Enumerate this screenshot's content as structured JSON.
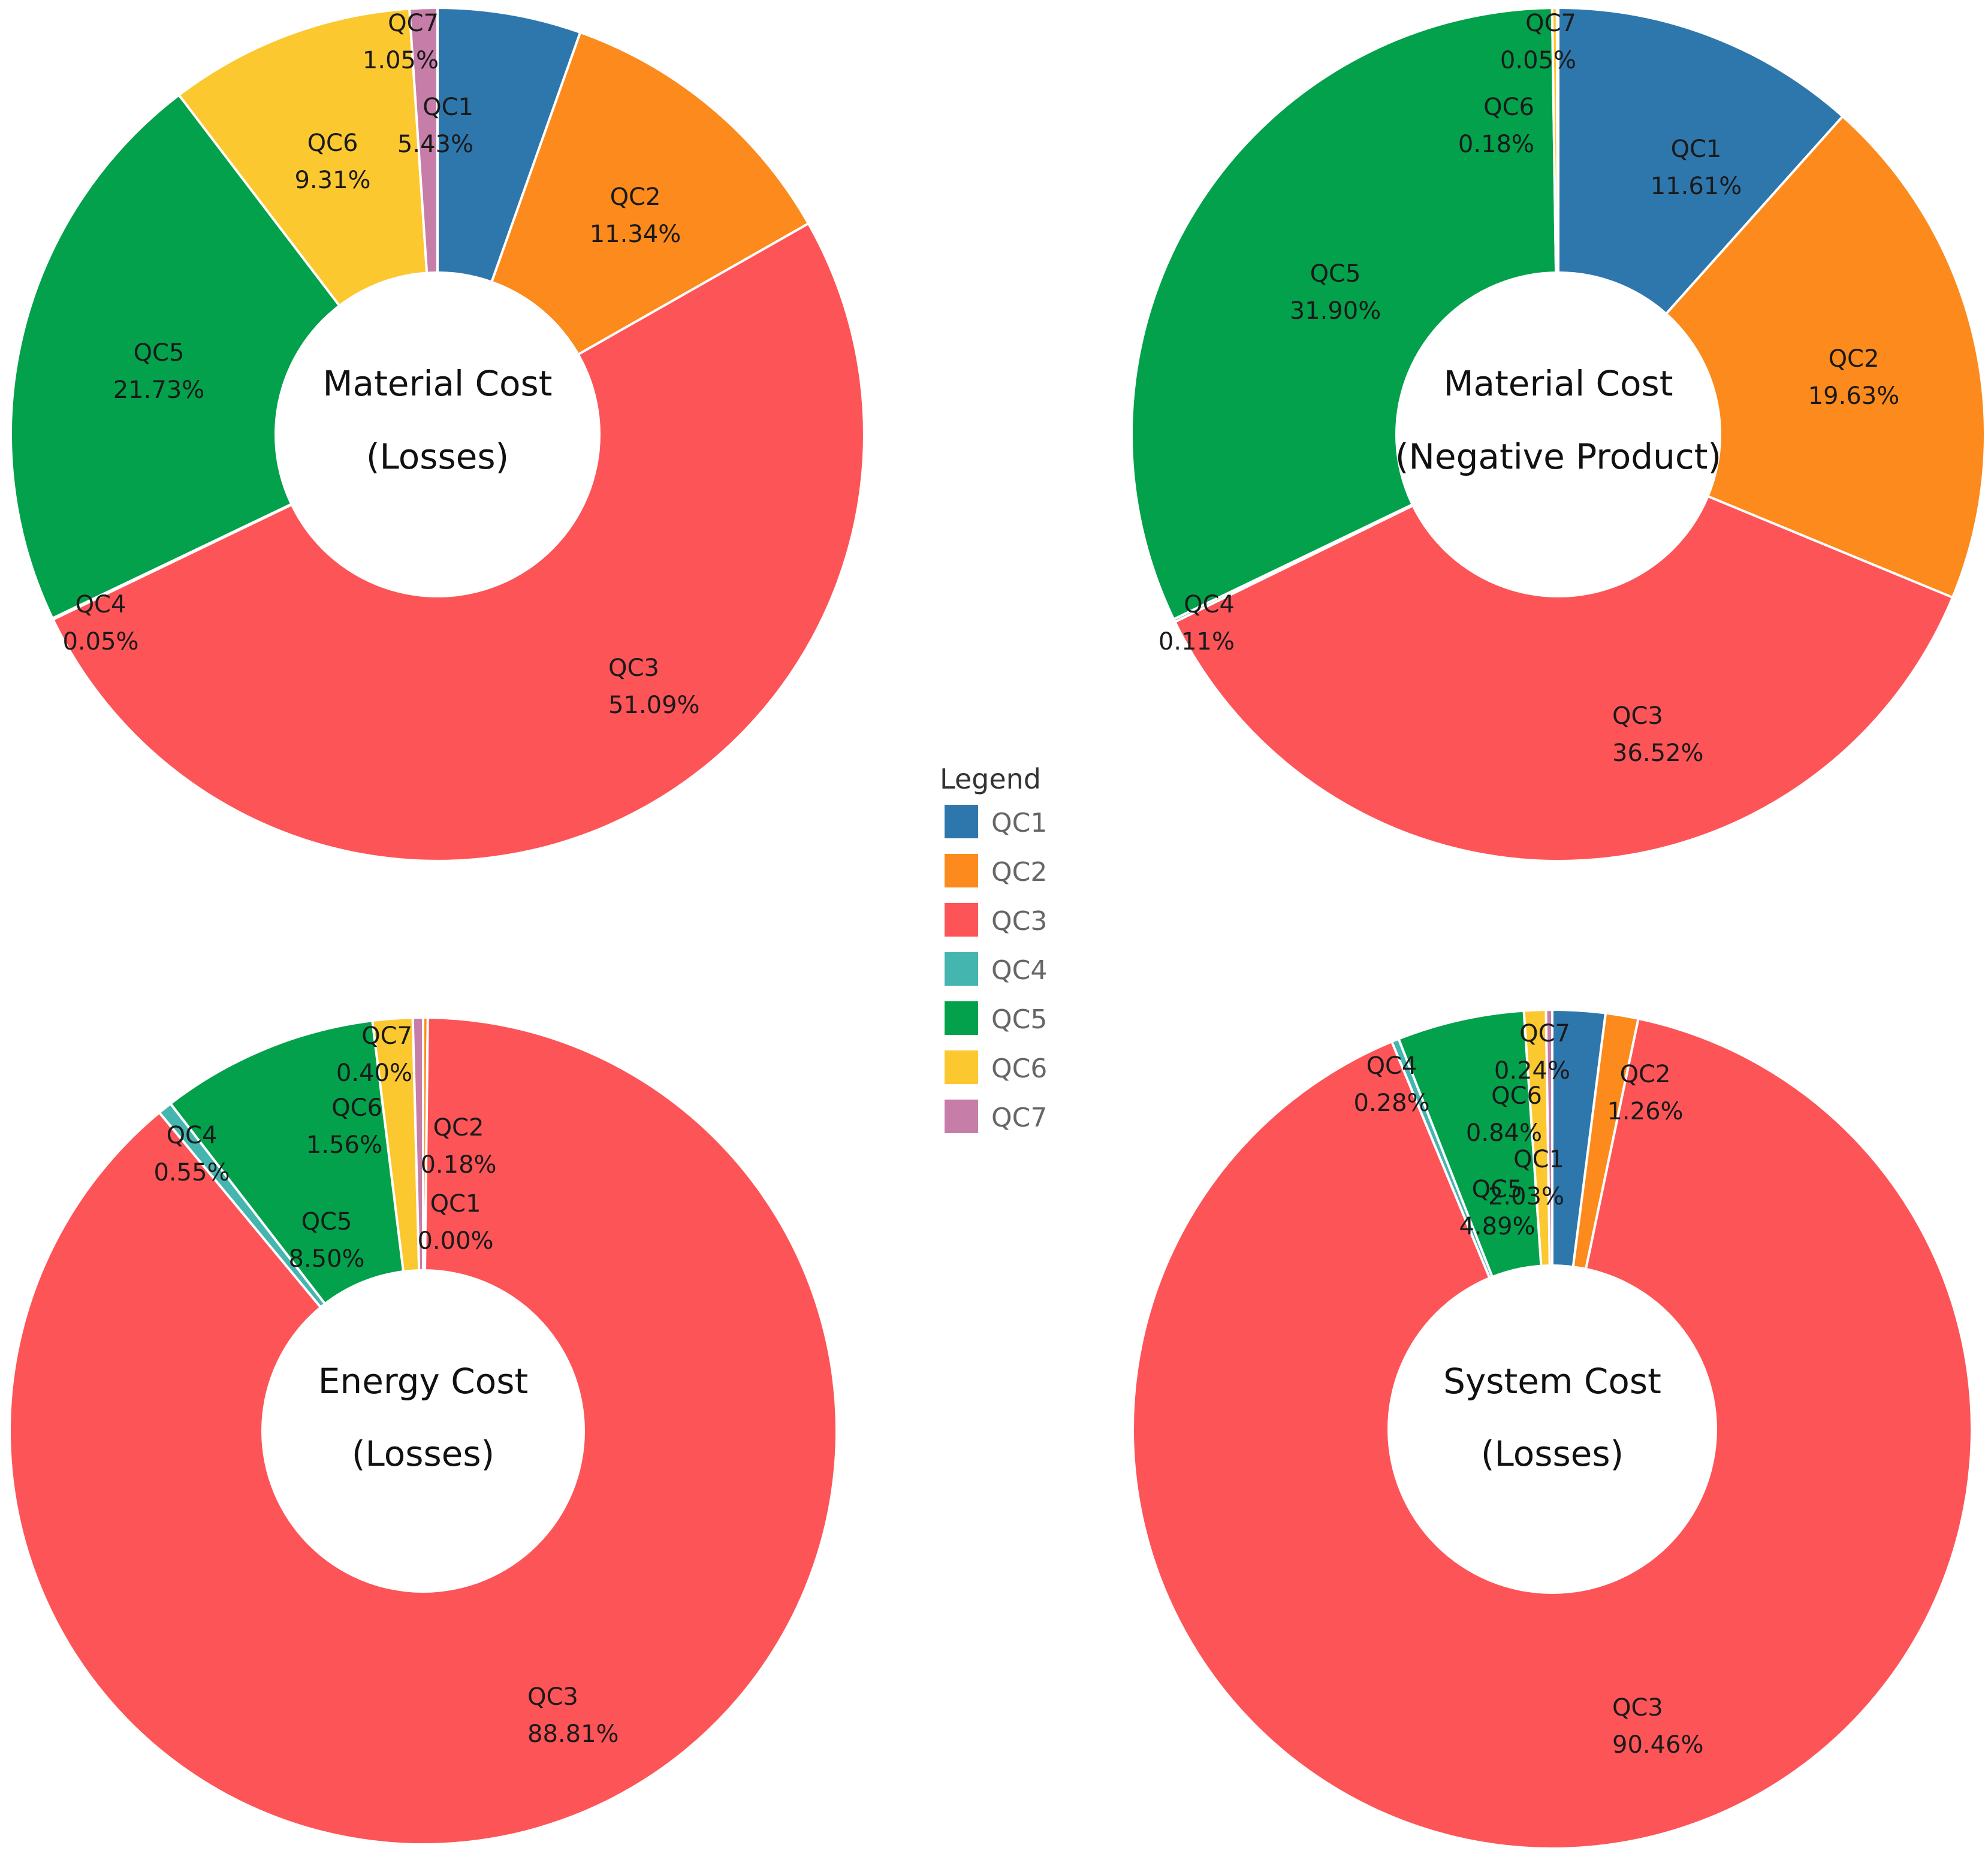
{
  "legend": {
    "title": "Legend",
    "items": [
      {
        "label": "QC1",
        "color": "#2E77AD"
      },
      {
        "label": "QC2",
        "color": "#FC8A1C"
      },
      {
        "label": "QC3",
        "color": "#FD5458"
      },
      {
        "label": "QC4",
        "color": "#45B5B0"
      },
      {
        "label": "QC5",
        "color": "#03A14B"
      },
      {
        "label": "QC6",
        "color": "#FBC830"
      },
      {
        "label": "QC7",
        "color": "#C67EA9"
      }
    ]
  },
  "chart_data": [
    {
      "type": "pie",
      "variant": "donut",
      "title_lines": [
        "Material Cost",
        "(Losses)"
      ],
      "categories": [
        "QC1",
        "QC2",
        "QC3",
        "QC4",
        "QC5",
        "QC6",
        "QC7"
      ],
      "values": [
        5.43,
        11.34,
        51.09,
        0.05,
        21.73,
        9.31,
        1.05
      ],
      "value_labels": [
        "5.43%",
        "11.34%",
        "51.09%",
        "0.05%",
        "21.73%",
        "9.31%",
        "1.05%"
      ]
    },
    {
      "type": "pie",
      "variant": "donut",
      "title_lines": [
        "Material Cost",
        "(Negative Product)"
      ],
      "categories": [
        "QC1",
        "QC2",
        "QC3",
        "QC4",
        "QC5",
        "QC6",
        "QC7"
      ],
      "values": [
        11.61,
        19.63,
        36.52,
        0.11,
        31.9,
        0.18,
        0.05
      ],
      "value_labels": [
        "11.61%",
        "19.63%",
        "36.52%",
        "0.11%",
        "31.90%",
        "0.18%",
        "0.05%"
      ]
    },
    {
      "type": "pie",
      "variant": "donut",
      "title_lines": [
        "Energy Cost",
        "(Losses)"
      ],
      "categories": [
        "QC1",
        "QC2",
        "QC3",
        "QC4",
        "QC5",
        "QC6",
        "QC7"
      ],
      "values": [
        0.0,
        0.18,
        88.81,
        0.55,
        8.5,
        1.56,
        0.4
      ],
      "value_labels": [
        "0.00%",
        "0.18%",
        "88.81%",
        "0.55%",
        "8.50%",
        "1.56%",
        "0.40%"
      ]
    },
    {
      "type": "pie",
      "variant": "donut",
      "title_lines": [
        "System Cost",
        "(Losses)"
      ],
      "categories": [
        "QC1",
        "QC2",
        "QC3",
        "QC4",
        "QC5",
        "QC6",
        "QC7"
      ],
      "values": [
        2.03,
        1.26,
        90.46,
        0.28,
        4.89,
        0.84,
        0.24
      ],
      "value_labels": [
        "2.03%",
        "1.26%",
        "90.46%",
        "0.28%",
        "4.89%",
        "0.84%",
        "0.24%"
      ]
    }
  ]
}
